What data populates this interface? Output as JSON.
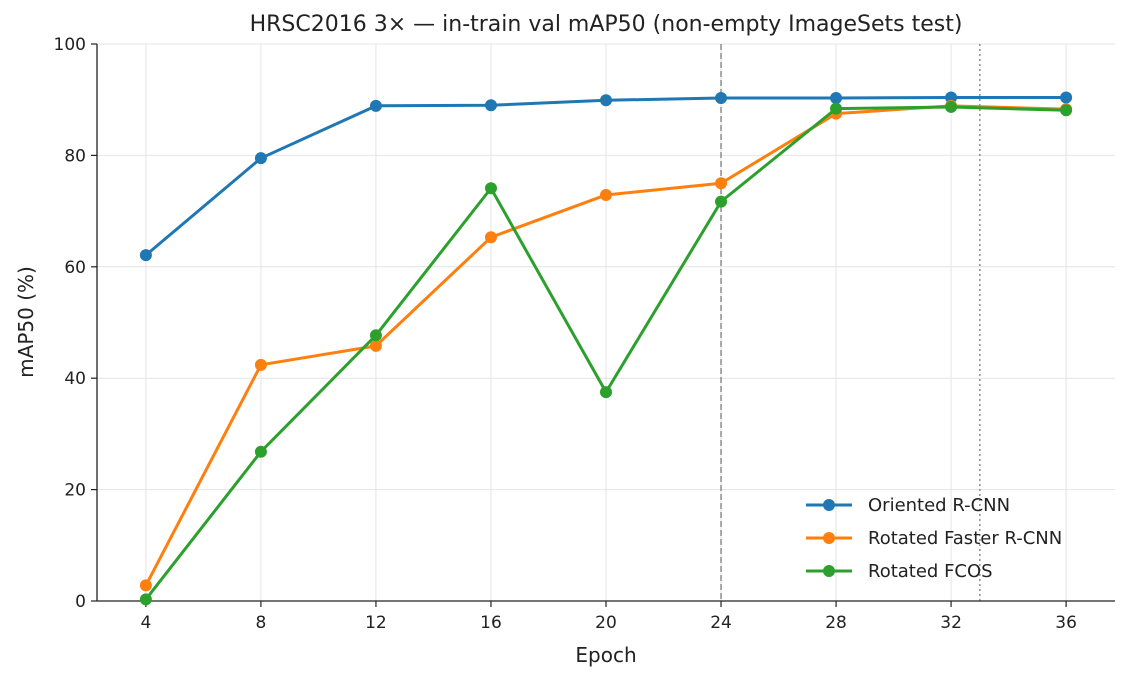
{
  "chart_data": {
    "type": "line",
    "title": "HRSC2016 3× — in-train val mAP50 (non-empty ImageSets test)",
    "xlabel": "Epoch",
    "ylabel": "mAP50 (%)",
    "x": [
      4,
      8,
      12,
      16,
      20,
      24,
      28,
      32,
      36
    ],
    "xticks": [
      4,
      8,
      12,
      16,
      20,
      24,
      28,
      32,
      36
    ],
    "yticks": [
      0,
      20,
      40,
      60,
      80,
      100
    ],
    "xlim": [
      2.3,
      37.7
    ],
    "ylim": [
      0,
      100
    ],
    "grid": true,
    "legend": "lower-right",
    "reference_lines": [
      {
        "x": 24,
        "style": "dashed",
        "color": "#8c8c8c"
      },
      {
        "x": 33,
        "style": "dotted",
        "color": "#8c8c8c"
      }
    ],
    "series": [
      {
        "name": "Oriented R-CNN",
        "color": "#1f77b4",
        "values": [
          62.1,
          79.5,
          88.9,
          89.0,
          89.9,
          90.3,
          90.3,
          90.4,
          90.4
        ]
      },
      {
        "name": "Rotated Faster R-CNN",
        "color": "#ff7f0e",
        "values": [
          2.8,
          42.4,
          45.8,
          65.3,
          72.9,
          75.0,
          87.5,
          88.9,
          88.3
        ]
      },
      {
        "name": "Rotated FCOS",
        "color": "#2ca02c",
        "values": [
          0.3,
          26.8,
          47.7,
          74.1,
          37.5,
          71.7,
          88.4,
          88.7,
          88.1
        ]
      }
    ]
  }
}
